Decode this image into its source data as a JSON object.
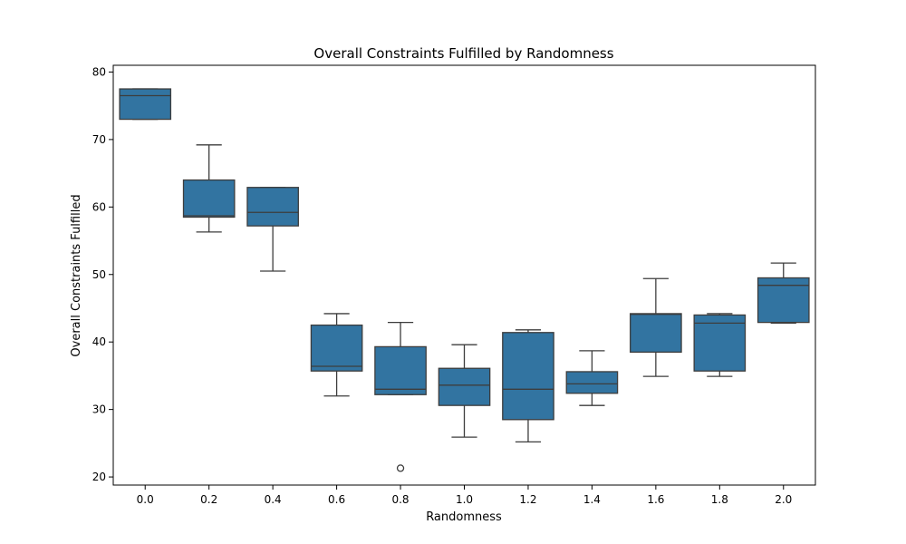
{
  "chart_data": {
    "type": "box",
    "title": "Overall Constraints Fulfilled by Randomness",
    "xlabel": "Randomness",
    "ylabel": "Overall Constraints Fulfilled",
    "ylim": [
      18.8,
      81.0
    ],
    "yticks": [
      "20",
      "30",
      "40",
      "50",
      "60",
      "70",
      "80"
    ],
    "categories": [
      "0.0",
      "0.2",
      "0.4",
      "0.6",
      "0.8",
      "1.0",
      "1.2",
      "1.4",
      "1.6",
      "1.8",
      "2.0"
    ],
    "boxes": [
      {
        "x": "0.0",
        "whisker_low": 73.0,
        "q1": 73.0,
        "median": 76.5,
        "q3": 77.5,
        "whisker_high": 77.5,
        "outliers": []
      },
      {
        "x": "0.2",
        "whisker_low": 56.3,
        "q1": 58.5,
        "median": 58.7,
        "q3": 64.0,
        "whisker_high": 69.2,
        "outliers": []
      },
      {
        "x": "0.4",
        "whisker_low": 50.5,
        "q1": 57.2,
        "median": 59.2,
        "q3": 62.9,
        "whisker_high": 62.9,
        "outliers": []
      },
      {
        "x": "0.6",
        "whisker_low": 32.0,
        "q1": 35.7,
        "median": 36.4,
        "q3": 42.5,
        "whisker_high": 44.2,
        "outliers": []
      },
      {
        "x": "0.8",
        "whisker_low": 32.2,
        "q1": 32.2,
        "median": 33.0,
        "q3": 39.3,
        "whisker_high": 42.9,
        "outliers": [
          21.3
        ]
      },
      {
        "x": "1.0",
        "whisker_low": 25.9,
        "q1": 30.6,
        "median": 33.6,
        "q3": 36.1,
        "whisker_high": 39.6,
        "outliers": []
      },
      {
        "x": "1.2",
        "whisker_low": 25.2,
        "q1": 28.5,
        "median": 33.0,
        "q3": 41.4,
        "whisker_high": 41.8,
        "outliers": []
      },
      {
        "x": "1.4",
        "whisker_low": 30.6,
        "q1": 32.4,
        "median": 33.8,
        "q3": 35.6,
        "whisker_high": 38.7,
        "outliers": []
      },
      {
        "x": "1.6",
        "whisker_low": 34.9,
        "q1": 38.5,
        "median": 44.1,
        "q3": 44.2,
        "whisker_high": 49.4,
        "outliers": []
      },
      {
        "x": "1.8",
        "whisker_low": 34.9,
        "q1": 35.7,
        "median": 42.8,
        "q3": 44.0,
        "whisker_high": 44.2,
        "outliers": []
      },
      {
        "x": "2.0",
        "whisker_low": 42.8,
        "q1": 42.9,
        "median": 48.4,
        "q3": 49.5,
        "whisker_high": 51.7,
        "outliers": []
      }
    ],
    "grid": false,
    "colors": {
      "box_fill": "#3274a1",
      "line": "#3d3d3d",
      "axis": "#000000"
    }
  }
}
